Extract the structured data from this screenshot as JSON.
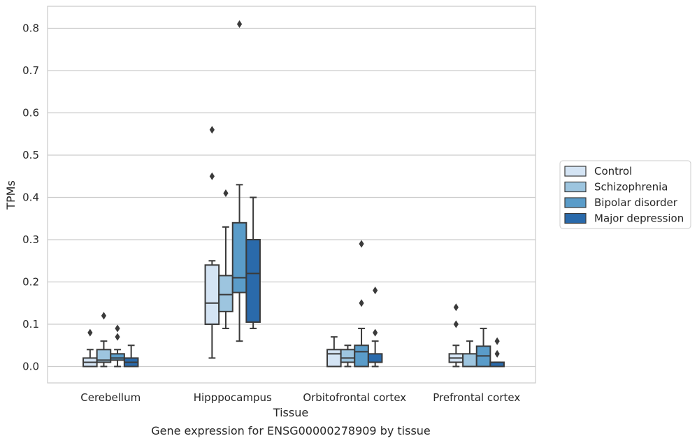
{
  "chart_data": {
    "type": "box",
    "xlabel": "Tissue",
    "ylabel": "TPMs",
    "caption": "Gene expression for ENSG00000278909 by tissue",
    "ylim": [
      -0.04,
      0.85
    ],
    "yticks": [
      "0.0",
      "0.1",
      "0.2",
      "0.3",
      "0.4",
      "0.5",
      "0.6",
      "0.7",
      "0.8"
    ],
    "grid": "horizontal",
    "legend_placement": "center-right",
    "categories": [
      "Cerebellum",
      "Hipppocampus",
      "Orbitofrontal cortex",
      "Prefrontal cortex"
    ],
    "series": [
      {
        "name": "Control",
        "color": "#d4e4f4",
        "boxes": [
          {
            "min": 0.0,
            "q1": 0.0,
            "median": 0.01,
            "q3": 0.02,
            "max": 0.04,
            "outliers": [
              0.08
            ]
          },
          {
            "min": 0.02,
            "q1": 0.1,
            "median": 0.15,
            "q3": 0.24,
            "max": 0.25,
            "outliers": [
              0.45,
              0.56
            ]
          },
          {
            "min": 0.0,
            "q1": 0.0,
            "median": 0.03,
            "q3": 0.04,
            "max": 0.07,
            "outliers": []
          },
          {
            "min": 0.0,
            "q1": 0.01,
            "median": 0.02,
            "q3": 0.03,
            "max": 0.05,
            "outliers": [
              0.1,
              0.14
            ]
          }
        ]
      },
      {
        "name": "Schizophrenia",
        "color": "#9dc5df",
        "boxes": [
          {
            "min": 0.0,
            "q1": 0.01,
            "median": 0.015,
            "q3": 0.04,
            "max": 0.06,
            "outliers": [
              0.12
            ]
          },
          {
            "min": 0.09,
            "q1": 0.13,
            "median": 0.17,
            "q3": 0.215,
            "max": 0.33,
            "outliers": [
              0.41
            ]
          },
          {
            "min": 0.0,
            "q1": 0.01,
            "median": 0.02,
            "q3": 0.04,
            "max": 0.05,
            "outliers": []
          },
          {
            "min": 0.0,
            "q1": 0.0,
            "median": 0.0,
            "q3": 0.03,
            "max": 0.06,
            "outliers": []
          }
        ]
      },
      {
        "name": "Bipolar disorder",
        "color": "#5a9cc9",
        "boxes": [
          {
            "min": 0.0,
            "q1": 0.015,
            "median": 0.02,
            "q3": 0.03,
            "max": 0.04,
            "outliers": [
              0.07,
              0.09
            ]
          },
          {
            "min": 0.06,
            "q1": 0.175,
            "median": 0.21,
            "q3": 0.34,
            "max": 0.43,
            "outliers": [
              0.81
            ]
          },
          {
            "min": 0.0,
            "q1": 0.0,
            "median": 0.035,
            "q3": 0.05,
            "max": 0.09,
            "outliers": [
              0.15,
              0.29
            ]
          },
          {
            "min": 0.0,
            "q1": 0.0,
            "median": 0.025,
            "q3": 0.048,
            "max": 0.09,
            "outliers": []
          }
        ]
      },
      {
        "name": "Major depression",
        "color": "#2a6aab",
        "boxes": [
          {
            "min": 0.0,
            "q1": 0.0,
            "median": 0.01,
            "q3": 0.02,
            "max": 0.05,
            "outliers": []
          },
          {
            "min": 0.09,
            "q1": 0.105,
            "median": 0.22,
            "q3": 0.3,
            "max": 0.4,
            "outliers": []
          },
          {
            "min": 0.0,
            "q1": 0.01,
            "median": 0.01,
            "q3": 0.03,
            "max": 0.06,
            "outliers": [
              0.08,
              0.18
            ]
          },
          {
            "min": 0.0,
            "q1": 0.0,
            "median": 0.0,
            "q3": 0.01,
            "max": 0.01,
            "outliers": [
              0.03,
              0.06
            ]
          }
        ]
      }
    ]
  }
}
